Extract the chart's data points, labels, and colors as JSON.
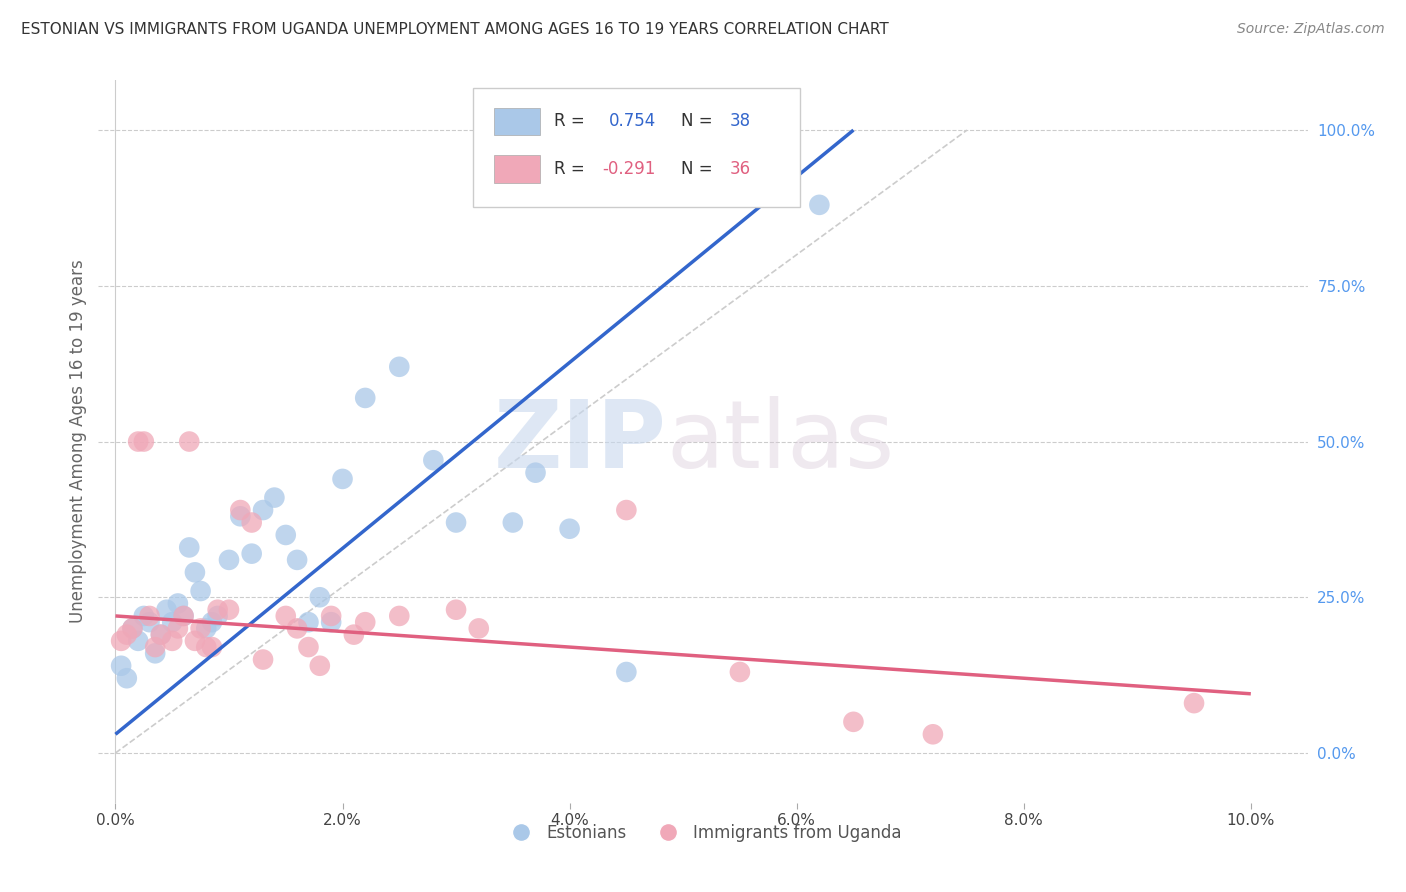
{
  "title": "ESTONIAN VS IMMIGRANTS FROM UGANDA UNEMPLOYMENT AMONG AGES 16 TO 19 YEARS CORRELATION CHART",
  "source": "Source: ZipAtlas.com",
  "ylabel": "Unemployment Among Ages 16 to 19 years",
  "xlabel_ticks": [
    "0.0%",
    "2.0%",
    "4.0%",
    "6.0%",
    "8.0%",
    "10.0%"
  ],
  "ylabel_ticks_right": [
    "0.0%",
    "25.0%",
    "50.0%",
    "75.0%",
    "100.0%"
  ],
  "xlim": [
    -0.15,
    10.5
  ],
  "ylim": [
    -8.0,
    108.0
  ],
  "blue_R": 0.754,
  "blue_N": 38,
  "pink_R": -0.291,
  "pink_N": 36,
  "blue_color": "#aac8e8",
  "blue_line_color": "#3366cc",
  "pink_color": "#f0a8b8",
  "pink_line_color": "#e06080",
  "estonians_label": "Estonians",
  "uganda_label": "Immigrants from Uganda",
  "watermark_zip": "ZIP",
  "watermark_atlas": "atlas",
  "diag_line_color": "#cccccc",
  "background_color": "#ffffff",
  "grid_color": "#cccccc",
  "blue_scatter_x": [
    0.05,
    0.1,
    0.15,
    0.2,
    0.25,
    0.3,
    0.35,
    0.4,
    0.45,
    0.5,
    0.55,
    0.6,
    0.65,
    0.7,
    0.75,
    0.8,
    0.85,
    0.9,
    1.0,
    1.1,
    1.2,
    1.3,
    1.4,
    1.5,
    1.6,
    1.7,
    1.8,
    2.0,
    2.2,
    2.5,
    2.8,
    3.0,
    3.5,
    3.7,
    4.0,
    4.5,
    6.2,
    1.9
  ],
  "blue_scatter_y": [
    14,
    12,
    20,
    18,
    22,
    21,
    16,
    19,
    23,
    21,
    24,
    22,
    33,
    29,
    26,
    20,
    21,
    22,
    31,
    38,
    32,
    39,
    41,
    35,
    31,
    21,
    25,
    44,
    57,
    62,
    47,
    37,
    37,
    45,
    36,
    13,
    88,
    21
  ],
  "pink_scatter_x": [
    0.05,
    0.1,
    0.15,
    0.2,
    0.25,
    0.3,
    0.35,
    0.4,
    0.5,
    0.55,
    0.6,
    0.65,
    0.7,
    0.75,
    0.8,
    0.85,
    0.9,
    1.0,
    1.1,
    1.2,
    1.3,
    1.5,
    1.6,
    1.7,
    1.8,
    1.9,
    2.1,
    2.2,
    2.5,
    3.0,
    3.2,
    4.5,
    5.5,
    6.5,
    7.2,
    9.5
  ],
  "pink_scatter_y": [
    18,
    19,
    20,
    50,
    50,
    22,
    17,
    19,
    18,
    20,
    22,
    50,
    18,
    20,
    17,
    17,
    23,
    23,
    39,
    37,
    15,
    22,
    20,
    17,
    14,
    22,
    19,
    21,
    22,
    23,
    20,
    39,
    13,
    5,
    3,
    8
  ],
  "blue_line_x0": 0.0,
  "blue_line_y0": 3.0,
  "blue_line_x1": 6.5,
  "blue_line_y1": 100.0,
  "pink_line_x0": 0.0,
  "pink_line_y0": 22.0,
  "pink_line_x1": 10.0,
  "pink_line_y1": 9.5,
  "diag_x0": 0.0,
  "diag_y0": 0.0,
  "diag_x1": 7.5,
  "diag_y1": 100.0
}
